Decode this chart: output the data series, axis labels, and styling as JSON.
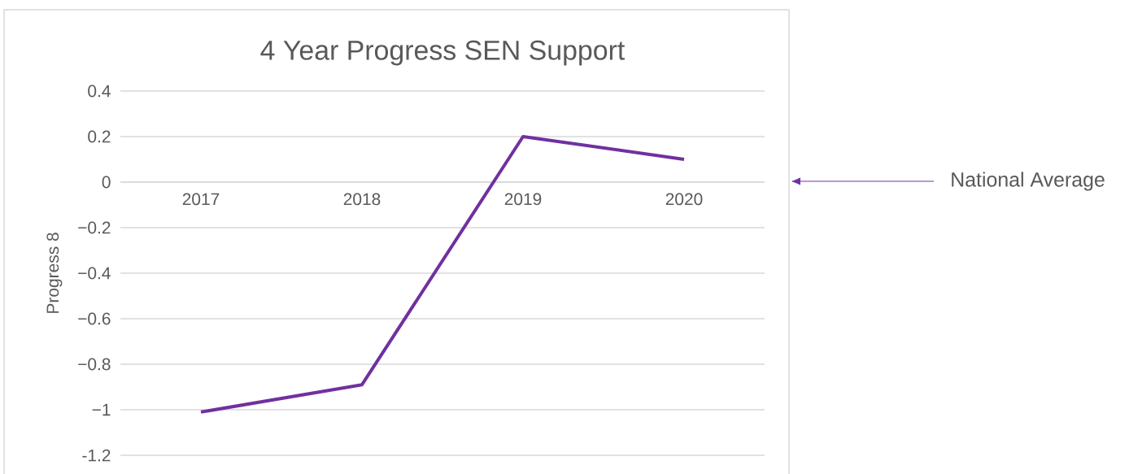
{
  "chart_data": {
    "type": "line",
    "title": "4 Year Progress SEN Support",
    "ylabel": "Progress 8",
    "categories": [
      "2017",
      "2018",
      "2019",
      "2020"
    ],
    "series": [
      {
        "color": "#7030a0",
        "values": [
          -1.01,
          -0.89,
          0.2,
          0.1
        ]
      }
    ],
    "ylim": [
      -1.2,
      0.4
    ],
    "yticks": [
      {
        "value": -1.2,
        "label": "-1.2"
      },
      {
        "value": -1,
        "label": "−1"
      },
      {
        "value": -0.8,
        "label": "−0.8"
      },
      {
        "value": -0.6,
        "label": "−0.6"
      },
      {
        "value": -0.4,
        "label": "−0.4"
      },
      {
        "value": -0.2,
        "label": "−0.2"
      },
      0,
      0.2,
      0.4
    ],
    "grid": "y",
    "annotations": [
      "National Average"
    ]
  }
}
